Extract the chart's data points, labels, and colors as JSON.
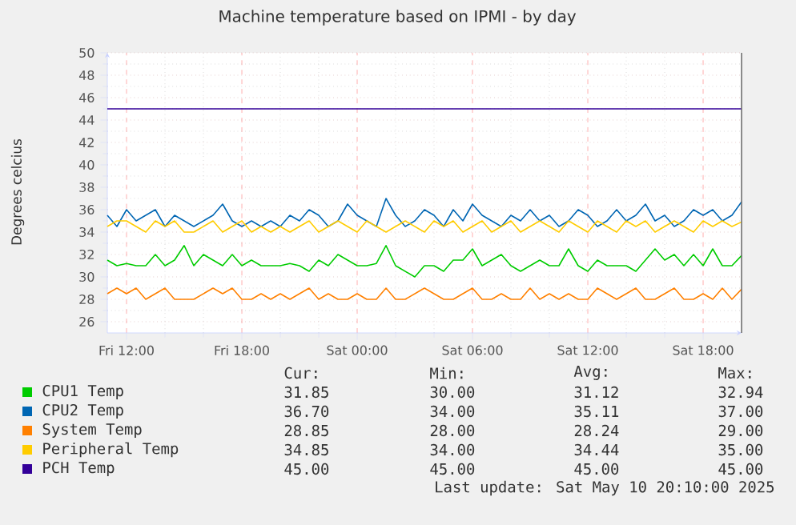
{
  "chart_data": {
    "type": "line",
    "title": "Machine temperature based on IPMI - by day",
    "ylabel": "Degrees celcius",
    "x": [
      "2025-05-09T11:00",
      "2025-05-09T11:30",
      "2025-05-09T12:00",
      "2025-05-09T12:30",
      "2025-05-09T13:00",
      "2025-05-09T13:30",
      "2025-05-09T14:00",
      "2025-05-09T14:30",
      "2025-05-09T15:00",
      "2025-05-09T15:30",
      "2025-05-09T16:00",
      "2025-05-09T16:30",
      "2025-05-09T17:00",
      "2025-05-09T17:30",
      "2025-05-09T18:00",
      "2025-05-09T18:30",
      "2025-05-09T19:00",
      "2025-05-09T19:30",
      "2025-05-09T20:00",
      "2025-05-09T20:30",
      "2025-05-09T21:00",
      "2025-05-09T21:30",
      "2025-05-09T22:00",
      "2025-05-09T22:30",
      "2025-05-09T23:00",
      "2025-05-09T23:30",
      "2025-05-10T00:00",
      "2025-05-10T00:30",
      "2025-05-10T01:00",
      "2025-05-10T01:30",
      "2025-05-10T02:00",
      "2025-05-10T02:30",
      "2025-05-10T03:00",
      "2025-05-10T03:30",
      "2025-05-10T04:00",
      "2025-05-10T04:30",
      "2025-05-10T05:00",
      "2025-05-10T05:30",
      "2025-05-10T06:00",
      "2025-05-10T06:30",
      "2025-05-10T07:00",
      "2025-05-10T07:30",
      "2025-05-10T08:00",
      "2025-05-10T08:30",
      "2025-05-10T09:00",
      "2025-05-10T09:30",
      "2025-05-10T10:00",
      "2025-05-10T10:30",
      "2025-05-10T11:00",
      "2025-05-10T11:30",
      "2025-05-10T12:00",
      "2025-05-10T12:30",
      "2025-05-10T13:00",
      "2025-05-10T13:30",
      "2025-05-10T14:00",
      "2025-05-10T14:30",
      "2025-05-10T15:00",
      "2025-05-10T15:30",
      "2025-05-10T16:00",
      "2025-05-10T16:30",
      "2025-05-10T17:00",
      "2025-05-10T17:30",
      "2025-05-10T18:00",
      "2025-05-10T18:30",
      "2025-05-10T19:00",
      "2025-05-10T19:30",
      "2025-05-10T20:00"
    ],
    "series": [
      {
        "name": "CPU1 Temp",
        "color": "#00cc00",
        "values": [
          31.5,
          31,
          31.2,
          31,
          31,
          32,
          31,
          31.5,
          32.8,
          31,
          32,
          31.5,
          31,
          32,
          31,
          31.5,
          31,
          31,
          31,
          31.2,
          31,
          30.5,
          31.5,
          31,
          32,
          31.5,
          31,
          31,
          31.2,
          32.8,
          31,
          30.5,
          30,
          31,
          31,
          30.5,
          31.5,
          31.5,
          32.5,
          31,
          31.5,
          32,
          31,
          30.5,
          31,
          31.5,
          31,
          31,
          32.5,
          31,
          30.5,
          31.5,
          31,
          31,
          31,
          30.5,
          31.5,
          32.5,
          31.5,
          32,
          31,
          32,
          31,
          32.5,
          31,
          31,
          31.9
        ]
      },
      {
        "name": "CPU2 Temp",
        "color": "#0066b3",
        "values": [
          35.5,
          34.5,
          36,
          35,
          35.5,
          36,
          34.5,
          35.5,
          35,
          34.5,
          35,
          35.5,
          36.5,
          35,
          34.5,
          35,
          34.5,
          35,
          34.5,
          35.5,
          35,
          36,
          35.5,
          34.5,
          35,
          36.5,
          35.5,
          35,
          34.5,
          37,
          35.5,
          34.5,
          35,
          36,
          35.5,
          34.5,
          36,
          35,
          36.5,
          35.5,
          35,
          34.5,
          35.5,
          35,
          36,
          35,
          35.5,
          34.5,
          35,
          36,
          35.5,
          34.5,
          35,
          36,
          35,
          35.5,
          36.5,
          35,
          35.5,
          34.5,
          35,
          36,
          35.5,
          36,
          35,
          35.5,
          36.7
        ]
      },
      {
        "name": "System Temp",
        "color": "#ff8000",
        "values": [
          28.5,
          29,
          28.5,
          29,
          28,
          28.5,
          29,
          28,
          28,
          28,
          28.5,
          29,
          28.5,
          29,
          28,
          28,
          28.5,
          28,
          28.5,
          28,
          28.5,
          29,
          28,
          28.5,
          28,
          28,
          28.5,
          28,
          28,
          29,
          28,
          28,
          28.5,
          29,
          28.5,
          28,
          28,
          28.5,
          29,
          28,
          28,
          28.5,
          28,
          28,
          29,
          28,
          28.5,
          28,
          28.5,
          28,
          28,
          29,
          28.5,
          28,
          28.5,
          29,
          28,
          28,
          28.5,
          29,
          28,
          28,
          28.5,
          28,
          29,
          28,
          28.9
        ]
      },
      {
        "name": "Peripheral Temp",
        "color": "#ffcc00",
        "values": [
          34.5,
          35,
          35,
          34.5,
          34,
          35,
          34.5,
          35,
          34,
          34,
          34.5,
          35,
          34,
          34.5,
          35,
          34,
          34.5,
          34,
          34.5,
          34,
          34.5,
          35,
          34,
          34.5,
          35,
          34.5,
          34,
          35,
          34.5,
          34,
          34.5,
          35,
          34.5,
          34,
          35,
          34.5,
          35,
          34,
          34.5,
          35,
          34,
          34.5,
          35,
          34,
          34.5,
          35,
          34.5,
          34,
          35,
          34.5,
          34,
          35,
          34.5,
          34,
          35,
          34.5,
          35,
          34,
          34.5,
          35,
          34.5,
          34,
          35,
          34.5,
          35,
          34.5,
          34.9
        ]
      },
      {
        "name": "PCH Temp",
        "color": "#330099",
        "x": [
          "2025-05-09T11:00",
          "2025-05-10T20:00"
        ],
        "values": [
          45,
          45
        ]
      }
    ],
    "xlim": [
      "2025-05-09T11:00",
      "2025-05-10T20:00"
    ],
    "ylim": [
      25,
      50
    ],
    "xticks": [
      {
        "value": "2025-05-09T12:00",
        "label": "Fri 12:00"
      },
      {
        "value": "2025-05-09T18:00",
        "label": "Fri 18:00"
      },
      {
        "value": "2025-05-10T00:00",
        "label": "Sat 00:00"
      },
      {
        "value": "2025-05-10T06:00",
        "label": "Sat 06:00"
      },
      {
        "value": "2025-05-10T12:00",
        "label": "Sat 12:00"
      },
      {
        "value": "2025-05-10T18:00",
        "label": "Sat 18:00"
      }
    ],
    "yticks": [
      26,
      28,
      30,
      32,
      34,
      36,
      38,
      40,
      42,
      44,
      46,
      48,
      50
    ],
    "grid": true,
    "legend": "bottom",
    "annotations": [
      "Cur:",
      "Min:",
      "Avg:",
      "Max:",
      "31.85",
      "30.00",
      "31.12",
      "32.94",
      "36.70",
      "34.00",
      "35.11",
      "37.00",
      "28.85",
      "28.00",
      "28.24",
      "29.00",
      "34.85",
      "34.00",
      "34.44",
      "35.00",
      "45.00",
      "45.00",
      "45.00",
      "45.00",
      "Last update:  Sat May 10 20:10:00 2025"
    ]
  }
}
